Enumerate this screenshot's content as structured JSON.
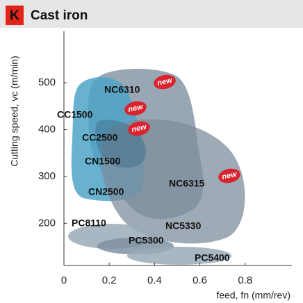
{
  "chart_data": {
    "type": "region",
    "badge": "K",
    "title": "Cast iron",
    "y_label": "Cutting speed, vc (m/min)",
    "x_label": "feed, fn (mm/rev)",
    "xlim": [
      0,
      1
    ],
    "xticks": [
      0,
      0.2,
      0.4,
      0.6,
      0.8
    ],
    "ylim": [
      110,
      610
    ],
    "yticks": [
      200,
      300,
      400,
      500
    ],
    "new_label": "new",
    "regions": [
      {
        "name": "NC6310",
        "new": true
      },
      {
        "name": "CC1500",
        "new": true
      },
      {
        "name": "CC2500",
        "new": true
      },
      {
        "name": "CN1500",
        "new": false
      },
      {
        "name": "NC6315",
        "new": true
      },
      {
        "name": "CN2500",
        "new": false
      },
      {
        "name": "NC5330",
        "new": false
      },
      {
        "name": "PC8110",
        "new": false
      },
      {
        "name": "PC5300",
        "new": false
      },
      {
        "name": "PC5400",
        "new": false
      }
    ]
  }
}
